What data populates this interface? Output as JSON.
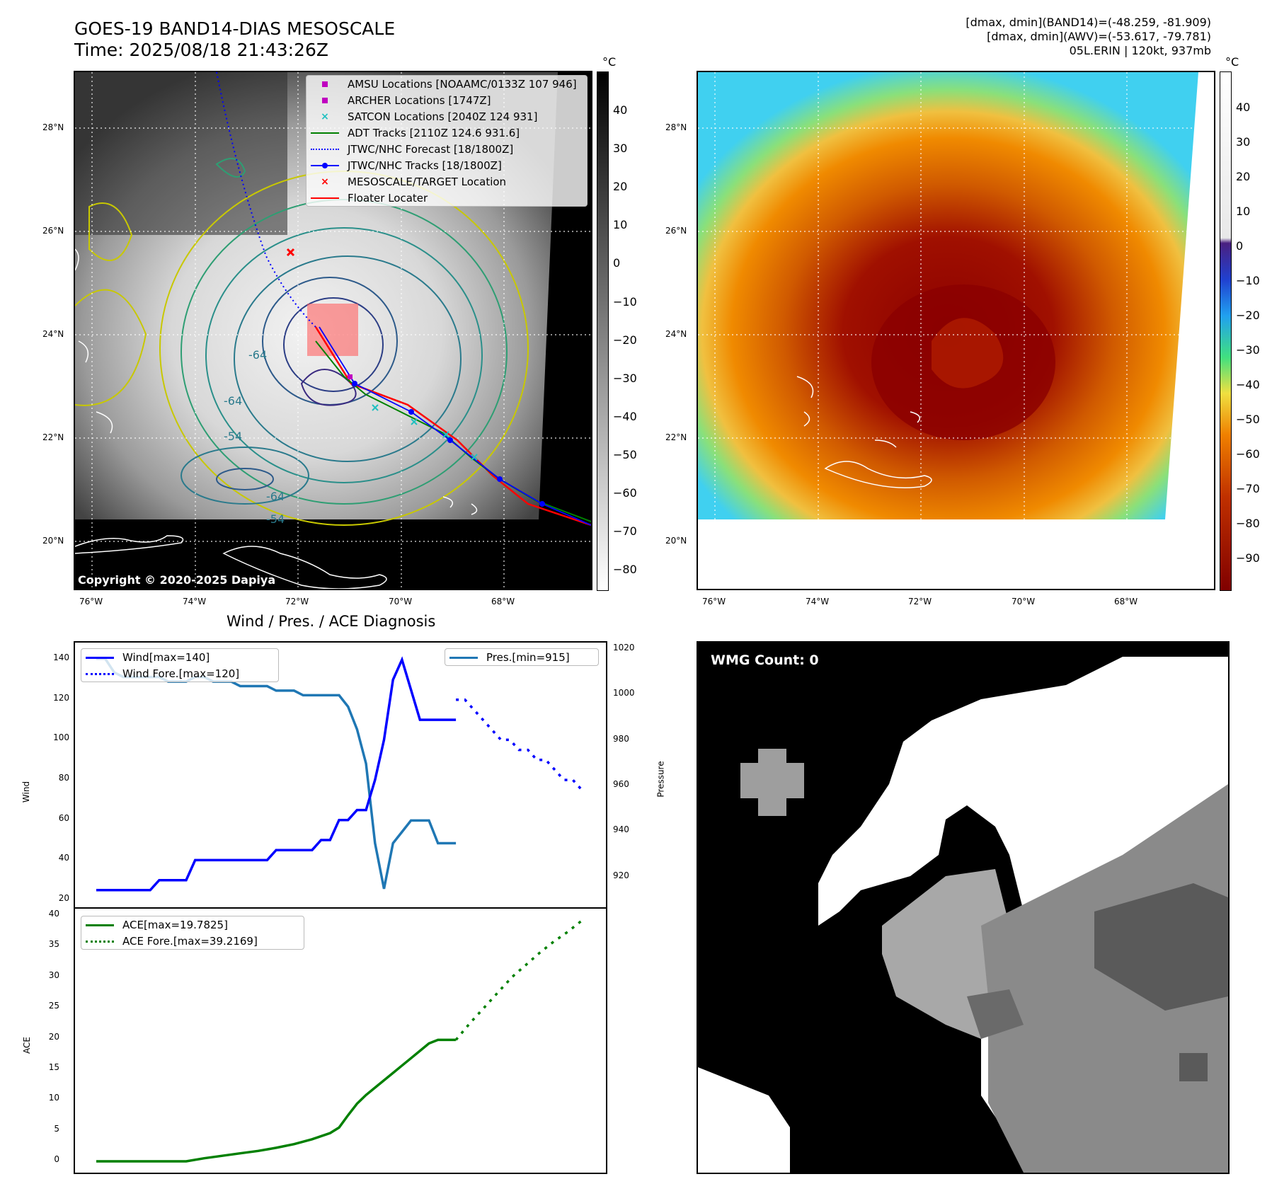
{
  "header": {
    "title_line1": "GOES-19 BAND14-DIAS MESOSCALE",
    "title_line2": "Time: 2025/08/18 21:43:26Z",
    "info_line1": "[dmax, dmin](BAND14)=(-48.259, -81.909)",
    "info_line2": "[dmax, dmin](AWV)=(-53.617, -79.781)",
    "info_line3": "05L.ERIN | 120kt, 937mb"
  },
  "map_axes": {
    "lat_ticks": [
      "28°N",
      "26°N",
      "24°N",
      "22°N",
      "20°N"
    ],
    "lon_ticks": [
      "76°W",
      "74°W",
      "72°W",
      "70°W",
      "68°W"
    ]
  },
  "colorbar_gray": {
    "unit": "°C",
    "ticks": [
      "40",
      "30",
      "20",
      "10",
      "0",
      "−10",
      "−20",
      "−30",
      "−40",
      "−50",
      "−60",
      "−70",
      "−80"
    ]
  },
  "colorbar_color": {
    "unit": "°C",
    "ticks": [
      "40",
      "30",
      "20",
      "10",
      "0",
      "−10",
      "−20",
      "−30",
      "−40",
      "−50",
      "−60",
      "−70",
      "−80",
      "−90"
    ]
  },
  "map_legend": [
    {
      "label": "AMSU Locations [NOAAMC/0133Z 107 946]",
      "symbol": "square",
      "color": "#c000c0"
    },
    {
      "label": "ARCHER Locations [1747Z]",
      "symbol": "square",
      "color": "#c000c0"
    },
    {
      "label": "SATCON Locations [2040Z 124 931]",
      "symbol": "x",
      "color": "#20c0c0"
    },
    {
      "label": "ADT Tracks [2110Z 124.6 931.6]",
      "symbol": "line",
      "color": "#008000"
    },
    {
      "label": "JTWC/NHC Forecast [18/1800Z]",
      "symbol": "dotted",
      "color": "#0000ff"
    },
    {
      "label": "JTWC/NHC Tracks [18/1800Z]",
      "symbol": "line-dot",
      "color": "#0000ff"
    },
    {
      "label": "MESOSCALE/TARGET Location",
      "symbol": "x",
      "color": "#ff0000"
    },
    {
      "label": "Floater Locater",
      "symbol": "line",
      "color": "#ff0000"
    }
  ],
  "contour_labels": [
    "-64",
    "-64",
    "-54",
    "-64",
    "-54"
  ],
  "copyright": "Copyright © 2020-2025 Dapiya",
  "wmg": {
    "label": "WMG Count: 0"
  },
  "chart_data": [
    {
      "type": "line",
      "title": "Wind / Pres. / ACE Diagnosis",
      "ylabel": "Wind",
      "y2label": "Pressure",
      "ylim": [
        20,
        145
      ],
      "y2lim": [
        910,
        1020
      ],
      "yticks": [
        "140",
        "120",
        "100",
        "80",
        "60",
        "40",
        "20"
      ],
      "y2ticks": [
        "1020",
        "1000",
        "980",
        "960",
        "940",
        "920"
      ],
      "series": [
        {
          "name": "Wind[max=140]",
          "color": "#0000ff",
          "style": "solid",
          "axis": "left",
          "x": [
            0,
            1,
            2,
            3,
            4,
            5,
            6,
            7,
            8,
            9,
            10,
            11,
            12,
            13,
            14,
            15,
            16,
            17,
            18,
            19,
            20,
            21,
            22,
            23,
            24,
            25,
            26,
            27,
            28,
            29,
            30,
            31,
            32,
            33,
            34,
            35,
            36,
            37,
            38,
            39,
            40
          ],
          "y": [
            25,
            25,
            25,
            25,
            25,
            25,
            25,
            30,
            30,
            30,
            30,
            40,
            40,
            40,
            40,
            40,
            40,
            40,
            40,
            40,
            45,
            45,
            45,
            45,
            45,
            50,
            50,
            60,
            60,
            65,
            65,
            80,
            100,
            130,
            140,
            125,
            110,
            110,
            110,
            110,
            110
          ]
        },
        {
          "name": "Wind Fore.[max=120]",
          "color": "#0000ff",
          "style": "dotted",
          "axis": "left",
          "x": [
            40,
            41,
            42,
            43,
            44,
            45,
            46,
            47,
            48,
            49,
            50,
            51,
            52,
            53,
            54
          ],
          "y": [
            120,
            120,
            115,
            110,
            105,
            100,
            100,
            95,
            95,
            90,
            90,
            85,
            80,
            80,
            75
          ]
        },
        {
          "name": "Pres.[min=915]",
          "color": "#1f77b4",
          "style": "solid",
          "axis": "right",
          "x": [
            0,
            1,
            2,
            3,
            4,
            5,
            6,
            7,
            8,
            9,
            10,
            11,
            12,
            13,
            14,
            15,
            16,
            17,
            18,
            19,
            20,
            21,
            22,
            23,
            24,
            25,
            26,
            27,
            28,
            29,
            30,
            31,
            32,
            33,
            34,
            35,
            36,
            37,
            38,
            39,
            40
          ],
          "y": [
            1016,
            1016,
            1010,
            1008,
            1008,
            1008,
            1008,
            1008,
            1006,
            1006,
            1006,
            1008,
            1008,
            1006,
            1006,
            1006,
            1004,
            1004,
            1004,
            1004,
            1002,
            1002,
            1002,
            1000,
            1000,
            1000,
            1000,
            1000,
            995,
            985,
            970,
            935,
            915,
            935,
            940,
            945,
            945,
            945,
            935,
            935,
            935
          ]
        }
      ]
    },
    {
      "type": "line",
      "ylabel": "ACE",
      "ylim": [
        0,
        40
      ],
      "yticks": [
        "40",
        "35",
        "30",
        "25",
        "20",
        "15",
        "10",
        "5",
        "0"
      ],
      "series": [
        {
          "name": "ACE[max=19.7825]",
          "color": "#008000",
          "style": "solid",
          "x": [
            0,
            2,
            4,
            6,
            8,
            10,
            12,
            14,
            16,
            18,
            20,
            22,
            24,
            26,
            27,
            28,
            29,
            30,
            31,
            32,
            33,
            34,
            35,
            36,
            37,
            38,
            39,
            40
          ],
          "y": [
            0,
            0,
            0,
            0,
            0,
            0,
            0.5,
            0.9,
            1.3,
            1.7,
            2.2,
            2.8,
            3.6,
            4.6,
            5.5,
            7.5,
            9.4,
            10.8,
            12.0,
            13.2,
            14.4,
            15.6,
            16.8,
            18.0,
            19.2,
            19.78,
            19.78,
            19.78
          ]
        },
        {
          "name": "ACE Fore.[max=39.2169]",
          "color": "#008000",
          "style": "dotted",
          "x": [
            28,
            30,
            32,
            34,
            36,
            38,
            40,
            42,
            44,
            46
          ],
          "y": [
            19.78,
            22.5,
            25.0,
            27.5,
            30.0,
            32.0,
            34.0,
            35.8,
            37.4,
            39.22
          ]
        }
      ]
    }
  ]
}
